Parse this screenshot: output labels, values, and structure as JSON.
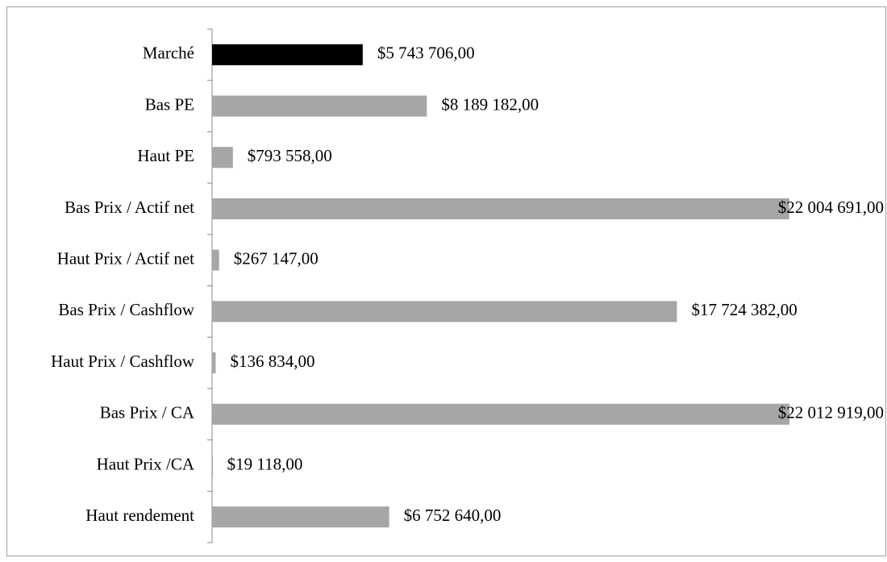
{
  "chart_data": {
    "type": "bar",
    "orientation": "horizontal",
    "categories": [
      "Marché",
      "Bas PE",
      "Haut PE",
      "Bas Prix / Actif net",
      "Haut Prix / Actif net",
      "Bas Prix / Cashflow",
      "Haut Prix / Cashflow",
      "Bas Prix / CA",
      "Haut Prix /CA",
      "Haut rendement"
    ],
    "values": [
      5743706,
      8189182,
      793558,
      22004691,
      267147,
      17724382,
      136834,
      22012919,
      19118,
      6752640
    ],
    "value_labels": [
      "$5 743 706,00",
      "$8 189 182,00",
      "$793 558,00",
      "$22 004 691,00",
      "$267 147,00",
      "$17 724 382,00",
      "$136 834,00",
      "$22 012 919,00",
      "$19 118,00",
      "$6 752 640,00"
    ],
    "colors": [
      "#000000",
      "#a6a6a6",
      "#a6a6a6",
      "#a6a6a6",
      "#a6a6a6",
      "#a6a6a6",
      "#a6a6a6",
      "#a6a6a6",
      "#a6a6a6",
      "#a6a6a6"
    ]
  }
}
